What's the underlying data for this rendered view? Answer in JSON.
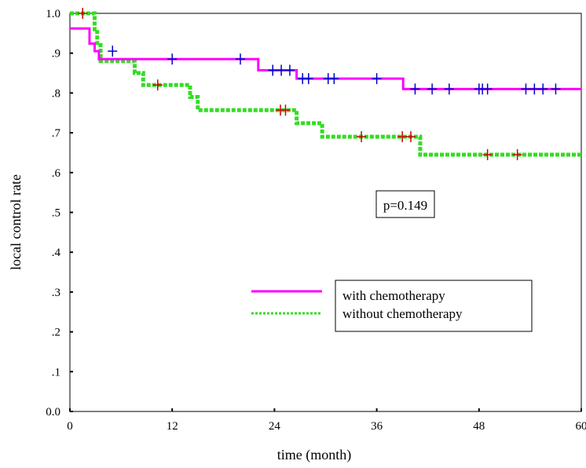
{
  "chart_data": {
    "type": "line",
    "xlabel": "time (month)",
    "ylabel": "local control rate",
    "xlim": [
      0,
      60
    ],
    "ylim": [
      0,
      1
    ],
    "x_ticks": [
      0,
      12,
      24,
      36,
      48,
      60
    ],
    "x_tick_labels": [
      "0",
      "12",
      "24",
      "36",
      "48",
      "60"
    ],
    "y_ticks": [
      0,
      0.1,
      0.2,
      0.3,
      0.4,
      0.5,
      0.6,
      0.7,
      0.8,
      0.9,
      1.0
    ],
    "y_tick_labels": [
      "0.0",
      ".1",
      ".2",
      ".3",
      ".4",
      ".5",
      ".6",
      ".7",
      ".8",
      ".9",
      "1.0"
    ],
    "grid": false,
    "legend_position": "lower-center",
    "annotation": "p=0.149",
    "series": [
      {
        "name": "with chemotherapy",
        "color": "#ff00ff",
        "censor_color": "#0000cc",
        "style": "solid",
        "steps": [
          [
            0,
            0.962
          ],
          [
            2.2,
            0.962
          ],
          [
            2.3,
            0.924
          ],
          [
            2.8,
            0.924
          ],
          [
            2.9,
            0.905
          ],
          [
            3.3,
            0.905
          ],
          [
            3.4,
            0.885
          ],
          [
            22.0,
            0.885
          ],
          [
            22.1,
            0.857
          ],
          [
            26.5,
            0.857
          ],
          [
            26.6,
            0.836
          ],
          [
            39.0,
            0.836
          ],
          [
            39.1,
            0.81
          ],
          [
            60,
            0.81
          ]
        ],
        "censored": [
          [
            5.0,
            0.905
          ],
          [
            12.0,
            0.885
          ],
          [
            20.0,
            0.885
          ],
          [
            23.8,
            0.857
          ],
          [
            24.8,
            0.857
          ],
          [
            25.8,
            0.857
          ],
          [
            27.3,
            0.836
          ],
          [
            28.0,
            0.836
          ],
          [
            30.3,
            0.836
          ],
          [
            31.0,
            0.836
          ],
          [
            36.0,
            0.836
          ],
          [
            40.5,
            0.81
          ],
          [
            42.5,
            0.81
          ],
          [
            44.5,
            0.81
          ],
          [
            48.0,
            0.81
          ],
          [
            48.4,
            0.81
          ],
          [
            49.0,
            0.81
          ],
          [
            53.5,
            0.81
          ],
          [
            54.5,
            0.81
          ],
          [
            55.5,
            0.81
          ],
          [
            57.0,
            0.81
          ]
        ]
      },
      {
        "name": "without chemotherapy",
        "color": "#33dd22",
        "censor_color": "#cc0000",
        "style": "dotted",
        "steps": [
          [
            0,
            1.0
          ],
          [
            2.8,
            1.0
          ],
          [
            2.9,
            0.96
          ],
          [
            3.1,
            0.96
          ],
          [
            3.2,
            0.92
          ],
          [
            3.5,
            0.92
          ],
          [
            3.6,
            0.88
          ],
          [
            7.5,
            0.88
          ],
          [
            7.6,
            0.85
          ],
          [
            8.5,
            0.85
          ],
          [
            8.6,
            0.82
          ],
          [
            14.0,
            0.82
          ],
          [
            14.1,
            0.79
          ],
          [
            14.9,
            0.79
          ],
          [
            15.0,
            0.757
          ],
          [
            26.5,
            0.757
          ],
          [
            26.6,
            0.724
          ],
          [
            29.5,
            0.724
          ],
          [
            29.6,
            0.69
          ],
          [
            41.0,
            0.69
          ],
          [
            41.1,
            0.645
          ],
          [
            60,
            0.645
          ]
        ],
        "censored": [
          [
            1.5,
            1.0
          ],
          [
            10.3,
            0.82
          ],
          [
            24.7,
            0.757
          ],
          [
            25.3,
            0.757
          ],
          [
            34.2,
            0.69
          ],
          [
            39.0,
            0.69
          ],
          [
            40.0,
            0.69
          ],
          [
            49.0,
            0.645
          ],
          [
            52.5,
            0.645
          ]
        ]
      }
    ]
  }
}
